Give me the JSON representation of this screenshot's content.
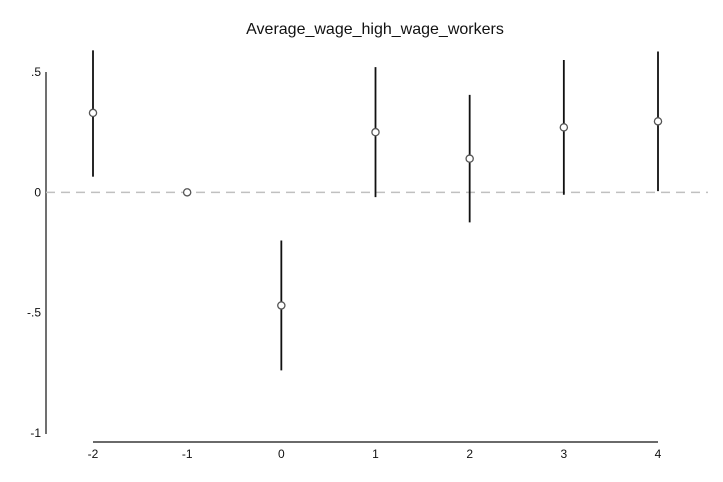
{
  "chart_data": {
    "type": "scatter",
    "title": "Average_wage_high_wage_workers",
    "xlabel": "",
    "ylabel": "",
    "x_ticks": [
      "-2",
      "-1",
      "0",
      "1",
      "2",
      "3",
      "4"
    ],
    "y_ticks": [
      {
        "value": 0.5,
        "label": ".5"
      },
      {
        "value": 0,
        "label": "0"
      },
      {
        "value": -0.5,
        "label": "-.5"
      },
      {
        "value": -1,
        "label": "-1"
      }
    ],
    "xlim": [
      -2,
      4
    ],
    "ylim": [
      -1,
      0.5
    ],
    "grid": false,
    "reference_line": {
      "y": 0,
      "style": "dashed",
      "color": "#c0c0c0"
    },
    "points": [
      {
        "x": -2,
        "y": 0.33,
        "ci_low": 0.065,
        "ci_high": 0.59
      },
      {
        "x": -1,
        "y": 0.0,
        "ci_low": null,
        "ci_high": null
      },
      {
        "x": 0,
        "y": -0.47,
        "ci_low": -0.74,
        "ci_high": -0.2
      },
      {
        "x": 1,
        "y": 0.25,
        "ci_low": -0.02,
        "ci_high": 0.52
      },
      {
        "x": 2,
        "y": 0.14,
        "ci_low": -0.125,
        "ci_high": 0.405
      },
      {
        "x": 3,
        "y": 0.27,
        "ci_low": -0.01,
        "ci_high": 0.55
      },
      {
        "x": 4,
        "y": 0.295,
        "ci_low": 0.005,
        "ci_high": 0.585
      }
    ],
    "colors": {
      "marker": "#555555",
      "ci": "#111111",
      "axis": "#111111"
    }
  }
}
